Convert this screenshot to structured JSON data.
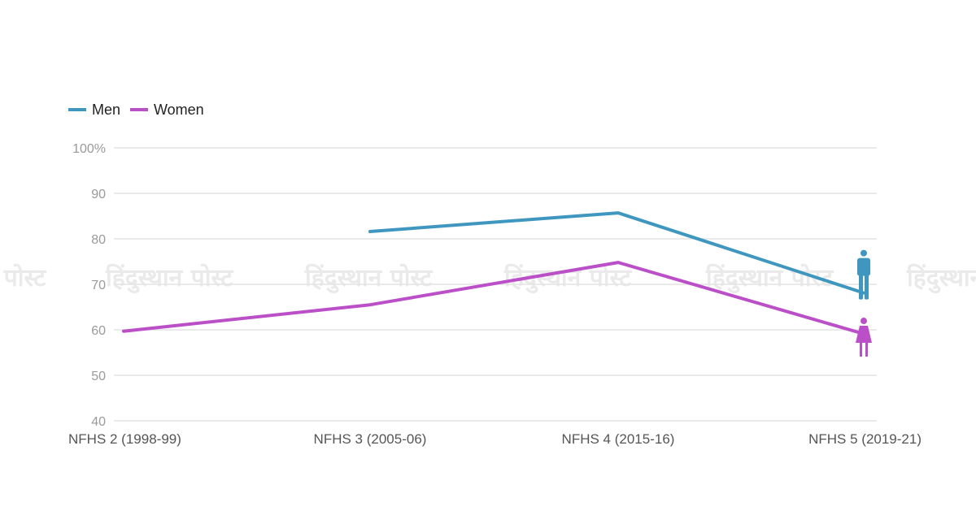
{
  "chart_data": {
    "type": "line",
    "categories": [
      "NFHS 2 (1998-99)",
      "NFHS 3 (2005-06)",
      "NFHS 4 (2015-16)",
      "NFHS 5 (2019-21)"
    ],
    "series": [
      {
        "name": "Men",
        "values": [
          null,
          81.6,
          85.7,
          68.1
        ],
        "color": "#3f97c0",
        "icon": "man-icon"
      },
      {
        "name": "Women",
        "values": [
          59.7,
          65.5,
          74.8,
          59.1
        ],
        "color": "#bb4fc8",
        "icon": "woman-icon"
      }
    ],
    "yticks": [
      40,
      50,
      60,
      70,
      80,
      90,
      100
    ],
    "ytick_labels": [
      "40",
      "50",
      "60",
      "70",
      "80",
      "90",
      "100%"
    ],
    "ylim": [
      40,
      100
    ],
    "grid": true,
    "legend_position": "top-left",
    "watermark": "हिंदुस्थान पोस्ट"
  }
}
